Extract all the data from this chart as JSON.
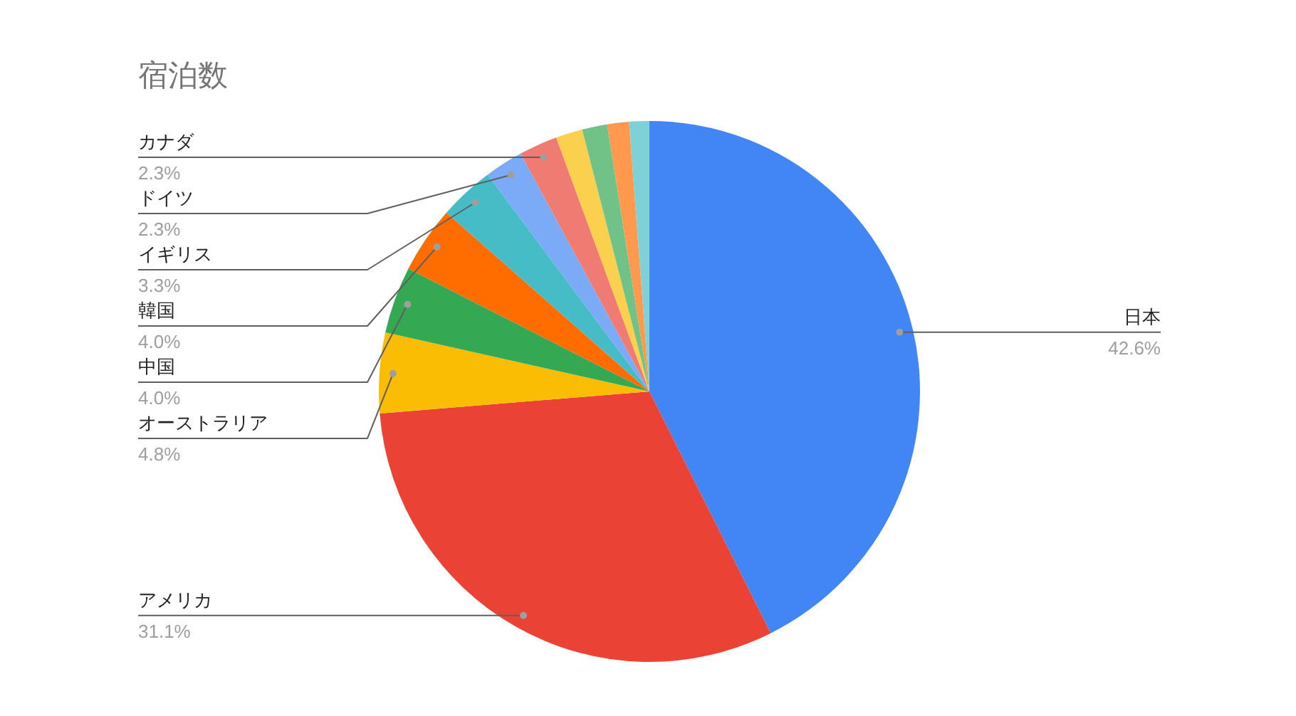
{
  "chart_data": {
    "type": "pie",
    "title": "宿泊数",
    "categories": [
      "日本",
      "アメリカ",
      "オーストラリア",
      "中国",
      "韓国",
      "イギリス",
      "ドイツ",
      "カナダ",
      null,
      null,
      null,
      null
    ],
    "values": [
      42.6,
      31.1,
      4.8,
      4.0,
      4.0,
      3.3,
      2.3,
      2.3,
      1.6,
      1.5,
      1.3,
      1.2
    ],
    "value_labels": [
      "42.6%",
      "31.1%",
      "4.8%",
      "4.0%",
      "4.0%",
      "3.3%",
      "2.3%",
      "2.3%",
      null,
      null,
      null,
      null
    ],
    "colors": [
      "#4285f4",
      "#ea4335",
      "#fbbc04",
      "#34a853",
      "#ff6d01",
      "#46bdc6",
      "#7baaf7",
      "#f07b72",
      "#fcd04f",
      "#71c287",
      "#ff994d",
      "#7ed1d7"
    ]
  }
}
